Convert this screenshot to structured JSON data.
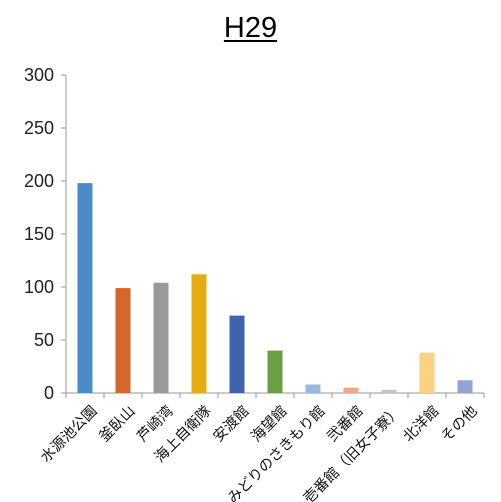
{
  "chart_data": {
    "type": "bar",
    "title": "H29",
    "xlabel": "",
    "ylabel": "",
    "ylim": [
      0,
      300
    ],
    "yticks": [
      0,
      50,
      100,
      150,
      200,
      250,
      300
    ],
    "grid": false,
    "legend": "none",
    "categories": [
      "水源池公園",
      "釜臥山",
      "芦崎湾",
      "海上自衛隊",
      "安渡館",
      "海望館",
      "みどりのさきもり館",
      "弐番館",
      "壱番館（旧女子寮）",
      "北洋館",
      "その他"
    ],
    "values": [
      198,
      99,
      104,
      112,
      73,
      40,
      8,
      5,
      3,
      38,
      12
    ],
    "colors": [
      "#4a8cc8",
      "#d6662b",
      "#999999",
      "#e6ad10",
      "#3f63ad",
      "#6aa042",
      "#99b8de",
      "#eda888",
      "#c4c4c4",
      "#fcd184",
      "#8fa3d5"
    ]
  }
}
